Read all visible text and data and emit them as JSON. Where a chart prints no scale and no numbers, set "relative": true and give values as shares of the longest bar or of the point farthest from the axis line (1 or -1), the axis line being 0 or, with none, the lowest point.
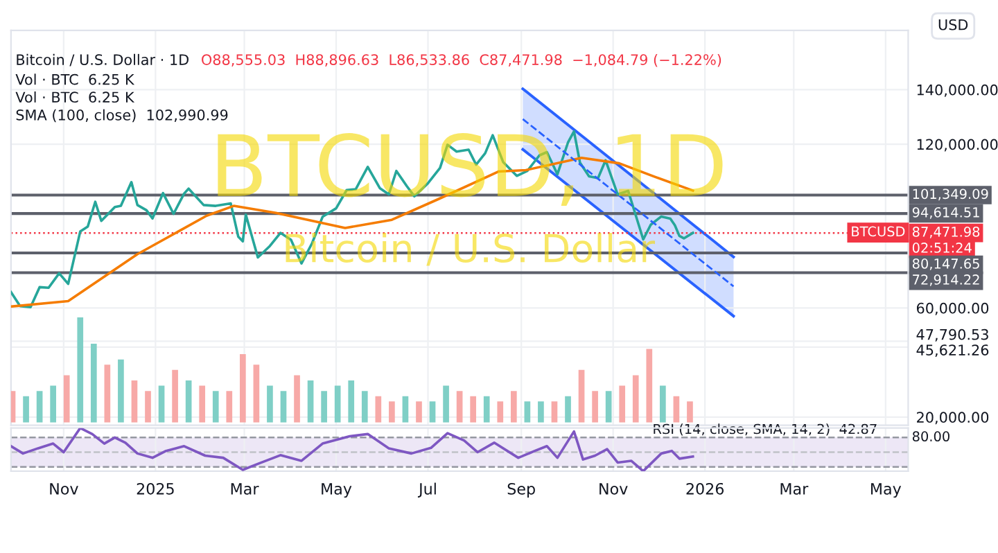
{
  "chart_data": [
    {
      "type": "line",
      "title": "Bitcoin / U.S. Dollar · 1D",
      "subtitle": "O88,555.03  H88,896.63  L86,533.86  C87,471.98  −1,084.79 (−1.22%)",
      "annotations": [
        "Vol · BTC  6.25 K",
        "Vol · BTC  6.25 K",
        "SMA (100, close)  102,990.99",
        "BTCUSD, 1D",
        "Bitcoin / U.S. Dollar",
        "USD",
        "BTCUSD",
        "02:51:24"
      ],
      "xlim": [
        "2024-09-27",
        "2026-05-16"
      ],
      "xticks": [
        {
          "value": "2024-11-01",
          "label": null
        },
        {
          "value": "2025-01-01",
          "label": null
        },
        {
          "value": "2025-03-01",
          "label": null
        },
        {
          "value": "2025-05-01",
          "label": null
        },
        {
          "value": "2025-07-01",
          "label": null
        },
        {
          "value": "2025-09-01",
          "label": null
        },
        {
          "value": "2025-11-01",
          "label": null
        },
        {
          "value": "2026-01-01",
          "label": null
        },
        {
          "value": "2026-03-01",
          "label": null
        },
        {
          "value": "2026-05-01",
          "label": null
        }
      ],
      "ylim": [
        17000,
        161700
      ],
      "yticks": [
        {
          "value": 20000,
          "label": "20,000.00"
        },
        {
          "value": 45621.26,
          "label": "45,621.26"
        },
        {
          "value": 47790.53,
          "label": "47,790.53"
        },
        {
          "value": 60000,
          "label": "60,000.00"
        },
        {
          "value": 120000,
          "label": "120,000.00"
        },
        {
          "value": 140000,
          "label": "140,000.00"
        }
      ],
      "tick_labels": "y",
      "grid": true,
      "ref_lines": [
        {
          "axis": "y",
          "value": 101349.09,
          "label": "101,349.09",
          "color": "#5d606b",
          "line_style": "solid"
        },
        {
          "axis": "y",
          "value": 94614.51,
          "label": "94,614.51",
          "color": "#5d606b",
          "line_style": "solid"
        },
        {
          "axis": "y",
          "value": 80147.65,
          "label": "80,147.65",
          "color": "#5d606b",
          "line_style": "solid"
        },
        {
          "axis": "y",
          "value": 72914.22,
          "label": "72,914.22",
          "color": "#5d606b",
          "line_style": "solid"
        },
        {
          "axis": "y",
          "value": 87471.98,
          "label": "87,471.98",
          "color": "#f23645",
          "line_style": "dotted"
        }
      ],
      "series": [
        {
          "color": "#26a69a",
          "x": [
            "2024-09-27",
            "2024-10-03",
            "2024-10-10",
            "2024-10-16",
            "2024-10-22",
            "2024-10-29",
            "2024-11-04",
            "2024-11-07",
            "2024-11-12",
            "2024-11-17",
            "2024-11-22",
            "2024-11-26",
            "2024-12-05",
            "2024-12-09",
            "2024-12-16",
            "2024-12-20",
            "2024-12-26",
            "2024-12-30",
            "2025-01-06",
            "2025-01-13",
            "2025-01-20",
            "2025-01-23",
            "2025-02-02",
            "2025-02-10",
            "2025-02-20",
            "2025-02-25",
            "2025-02-28",
            "2025-03-02",
            "2025-03-10",
            "2025-03-18",
            "2025-03-25",
            "2025-04-01",
            "2025-04-08",
            "2025-04-15",
            "2025-04-22",
            "2025-05-01",
            "2025-05-08",
            "2025-05-14",
            "2025-05-22",
            "2025-05-30",
            "2025-06-05",
            "2025-06-10",
            "2025-06-17",
            "2025-06-22",
            "2025-07-01",
            "2025-07-09",
            "2025-07-14",
            "2025-07-20",
            "2025-07-28",
            "2025-08-02",
            "2025-08-08",
            "2025-08-13",
            "2025-08-20",
            "2025-08-29",
            "2025-09-05",
            "2025-09-13",
            "2025-09-18",
            "2025-09-25",
            "2025-10-02",
            "2025-10-06",
            "2025-10-10",
            "2025-10-16",
            "2025-10-22",
            "2025-10-27",
            "2025-11-04",
            "2025-11-11",
            "2025-11-17",
            "2025-11-21",
            "2025-11-26",
            "2025-12-03",
            "2025-12-09",
            "2025-12-12",
            "2025-12-15",
            "2025-12-18",
            "2025-12-24"
          ],
          "values": [
            65800,
            60700,
            60300,
            67600,
            67400,
            72700,
            68800,
            76000,
            88000,
            89800,
            98900,
            91900,
            97000,
            97400,
            106100,
            97700,
            95800,
            92800,
            102100,
            94500,
            101900,
            103700,
            97700,
            97400,
            98300,
            86100,
            84400,
            94200,
            78500,
            82700,
            87500,
            85000,
            76300,
            83700,
            93400,
            96500,
            103200,
            103500,
            111700,
            103900,
            101600,
            110200,
            104600,
            100900,
            105700,
            111300,
            119800,
            117300,
            118000,
            112500,
            116700,
            123300,
            113400,
            108400,
            110200,
            115900,
            117100,
            109000,
            120600,
            124700,
            113200,
            108200,
            107600,
            114100,
            101600,
            102900,
            92200,
            85100,
            90500,
            93500,
            92700,
            90300,
            86400,
            85500,
            87500
          ]
        },
        {
          "color": "#f57c00",
          "x": [
            "2024-09-27",
            "2024-11-04",
            "2024-12-20",
            "2025-02-04",
            "2025-02-22",
            "2025-03-22",
            "2025-05-07",
            "2025-06-07",
            "2025-07-08",
            "2025-08-17",
            "2025-09-04",
            "2025-10-11",
            "2025-11-05",
            "2025-11-29",
            "2025-12-24"
          ],
          "values": [
            60500,
            62500,
            79700,
            93800,
            97400,
            94800,
            89300,
            92300,
            99900,
            110000,
            110500,
            115000,
            113000,
            108000,
            103000
          ]
        },
        {
          "color": "#2962ff",
          "line_style": "dashed",
          "x": [
            "2025-09-02",
            "2026-01-20"
          ],
          "values": [
            129200,
            67900
          ],
          "lower": [
            118100,
            57000
          ],
          "upper": [
            140300,
            78700
          ]
        }
      ]
    },
    {
      "type": "bar",
      "relative": true,
      "tick_labels": false,
      "xlim": [
        "2024-09-27",
        "2026-05-16"
      ],
      "x": [
        "2024-09-28",
        "2024-10-07",
        "2024-10-16",
        "2024-10-25",
        "2024-11-03",
        "2024-11-12",
        "2024-11-21",
        "2024-11-30",
        "2024-12-09",
        "2024-12-18",
        "2024-12-27",
        "2025-01-05",
        "2025-01-14",
        "2025-01-23",
        "2025-02-01",
        "2025-02-10",
        "2025-02-19",
        "2025-02-28",
        "2025-03-09",
        "2025-03-18",
        "2025-03-27",
        "2025-04-05",
        "2025-04-14",
        "2025-04-23",
        "2025-05-02",
        "2025-05-11",
        "2025-05-20",
        "2025-05-29",
        "2025-06-07",
        "2025-06-16",
        "2025-06-25",
        "2025-07-04",
        "2025-07-13",
        "2025-07-22",
        "2025-07-31",
        "2025-08-09",
        "2025-08-18",
        "2025-08-27",
        "2025-09-05",
        "2025-09-14",
        "2025-09-23",
        "2025-10-02",
        "2025-10-11",
        "2025-10-20",
        "2025-10-29",
        "2025-11-07",
        "2025-11-16",
        "2025-11-25",
        "2025-12-04",
        "2025-12-13",
        "2025-12-22"
      ],
      "series": [
        {
          "values": [
            0.3,
            0.25,
            0.3,
            0.35,
            0.45,
            1.0,
            0.75,
            0.55,
            0.6,
            0.4,
            0.3,
            0.35,
            0.5,
            0.4,
            0.35,
            0.3,
            0.3,
            0.65,
            0.55,
            0.35,
            0.3,
            0.45,
            0.4,
            0.3,
            0.35,
            0.4,
            0.3,
            0.25,
            0.2,
            0.25,
            0.2,
            0.2,
            0.35,
            0.3,
            0.25,
            0.25,
            0.2,
            0.3,
            0.2,
            0.2,
            0.2,
            0.25,
            0.5,
            0.3,
            0.3,
            0.35,
            0.45,
            0.7,
            0.35,
            0.25,
            0.2
          ],
          "colors": [
            "#f7a9a7",
            "#7fcfc6",
            "#7fcfc6",
            "#7fcfc6",
            "#f7a9a7",
            "#7fcfc6",
            "#7fcfc6",
            "#f7a9a7",
            "#7fcfc6",
            "#f7a9a7",
            "#f7a9a7",
            "#7fcfc6",
            "#f7a9a7",
            "#7fcfc6",
            "#f7a9a7",
            "#7fcfc6",
            "#f7a9a7",
            "#f7a9a7",
            "#f7a9a7",
            "#7fcfc6",
            "#7fcfc6",
            "#f7a9a7",
            "#7fcfc6",
            "#7fcfc6",
            "#7fcfc6",
            "#7fcfc6",
            "#7fcfc6",
            "#f7a9a7",
            "#f7a9a7",
            "#7fcfc6",
            "#f7a9a7",
            "#7fcfc6",
            "#7fcfc6",
            "#f7a9a7",
            "#f7a9a7",
            "#7fcfc6",
            "#f7a9a7",
            "#f7a9a7",
            "#7fcfc6",
            "#7fcfc6",
            "#f7a9a7",
            "#7fcfc6",
            "#f7a9a7",
            "#f7a9a7",
            "#7fcfc6",
            "#f7a9a7",
            "#f7a9a7",
            "#f7a9a7",
            "#7fcfc6",
            "#f7a9a7",
            "#f7a9a7"
          ]
        }
      ]
    },
    {
      "type": "line",
      "relative": true,
      "title": "RSI (14, close, SMA, 14, 2)  42.87",
      "annotations": [
        "80.00"
      ],
      "tick_labels": "x",
      "grid": true,
      "xlim": [
        "2024-09-27",
        "2026-05-16"
      ],
      "xticks": [
        {
          "value": "2024-11-01",
          "label": "Nov"
        },
        {
          "value": "2025-01-01",
          "label": "2025"
        },
        {
          "value": "2025-03-01",
          "label": "Mar"
        },
        {
          "value": "2025-05-01",
          "label": "May"
        },
        {
          "value": "2025-07-01",
          "label": "Jul"
        },
        {
          "value": "2025-09-01",
          "label": "Sep"
        },
        {
          "value": "2025-11-01",
          "label": "Nov"
        },
        {
          "value": "2026-01-01",
          "label": "2026"
        },
        {
          "value": "2026-03-01",
          "label": "Mar"
        },
        {
          "value": "2026-05-01",
          "label": "May"
        }
      ],
      "bands": [
        {
          "axis": "y",
          "from": 0.1,
          "to": 0.78,
          "color": "#ede7f6"
        }
      ],
      "ref_lines": [
        {
          "axis": "y",
          "value": 0.78,
          "color": "#9598a1",
          "line_style": "dashed"
        },
        {
          "axis": "y",
          "value": 0.44,
          "color": "#c0c2c8",
          "line_style": "dashed"
        },
        {
          "axis": "y",
          "value": 0.1,
          "color": "#9598a1",
          "line_style": "dashed"
        }
      ],
      "series": [
        {
          "color": "#7e57c2",
          "x": [
            "2024-09-27",
            "2024-10-05",
            "2024-10-15",
            "2024-10-25",
            "2024-11-01",
            "2024-11-12",
            "2024-11-20",
            "2024-11-28",
            "2024-12-05",
            "2024-12-12",
            "2024-12-20",
            "2024-12-30",
            "2025-01-08",
            "2025-01-20",
            "2025-02-03",
            "2025-02-15",
            "2025-02-28",
            "2025-03-10",
            "2025-03-25",
            "2025-04-08",
            "2025-04-22",
            "2025-05-10",
            "2025-05-22",
            "2025-06-05",
            "2025-06-20",
            "2025-07-03",
            "2025-07-14",
            "2025-07-25",
            "2025-08-03",
            "2025-08-14",
            "2025-08-30",
            "2025-09-10",
            "2025-09-18",
            "2025-09-25",
            "2025-10-06",
            "2025-10-12",
            "2025-10-20",
            "2025-10-28",
            "2025-11-04",
            "2025-11-13",
            "2025-11-21",
            "2025-12-03",
            "2025-12-10",
            "2025-12-15",
            "2025-12-24"
          ],
          "values": [
            0.58,
            0.41,
            0.53,
            0.64,
            0.44,
            1,
            0.86,
            0.64,
            0.78,
            0.66,
            0.41,
            0.31,
            0.47,
            0.58,
            0.36,
            0.31,
            0.03,
            0.17,
            0.37,
            0.24,
            0.64,
            0.81,
            0.86,
            0.53,
            0.41,
            0.54,
            0.88,
            0.71,
            0.44,
            0.66,
            0.31,
            0.47,
            0.58,
            0.31,
            0.92,
            0.27,
            0.36,
            0.51,
            0.2,
            0.24,
            0,
            0.41,
            0.47,
            0.29,
            0.34
          ]
        }
      ]
    }
  ]
}
